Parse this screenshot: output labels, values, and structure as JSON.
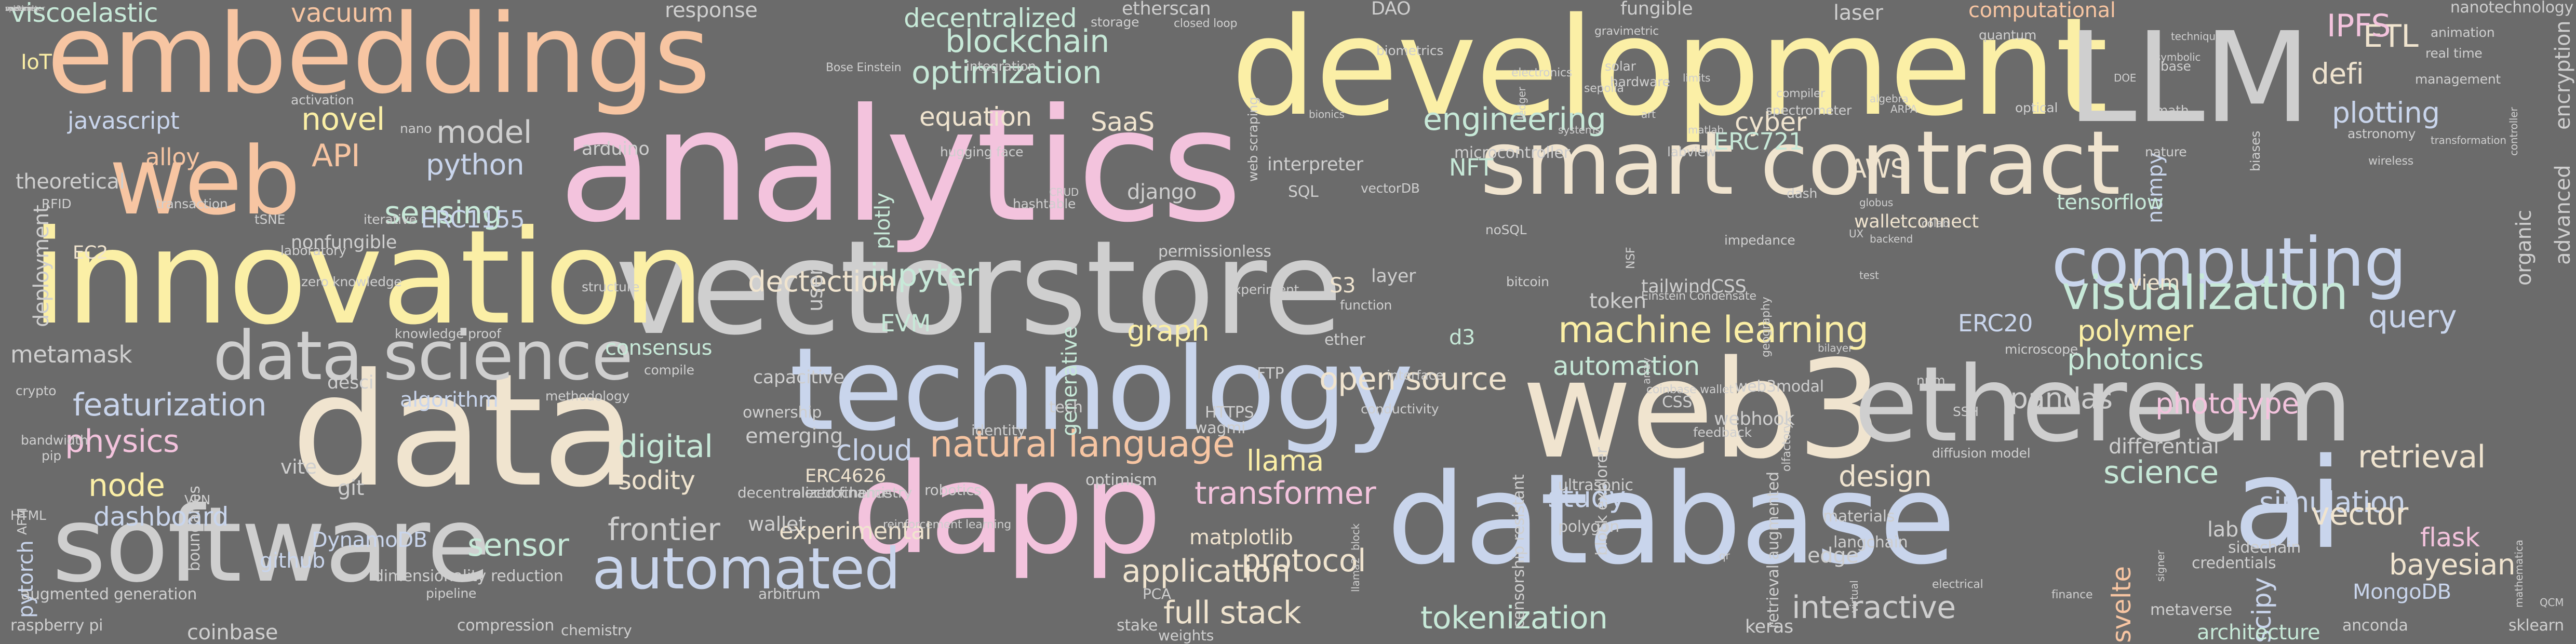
{
  "palette": {
    "background": "#6b6b6b",
    "peach": "#f7c5a2",
    "pink": "#f3c3dd",
    "yellow": "#fbefa6",
    "blue": "#c9d5ec",
    "mint": "#c7e9d8",
    "cream": "#f0e4cf",
    "gray": "#cfcfcf"
  },
  "words": [
    {
      "text": "analytics",
      "color": "#f3c3dd"
    },
    {
      "text": "vectorstore",
      "color": "#cfcfcf"
    },
    {
      "text": "development",
      "color": "#fbefa6"
    },
    {
      "text": "innovation",
      "color": "#fbefa6"
    },
    {
      "text": "embeddings",
      "color": "#f7c5a2"
    },
    {
      "text": "technology",
      "color": "#c9d5ec"
    },
    {
      "text": "database",
      "color": "#c9d5ec"
    },
    {
      "text": "web3",
      "color": "#f0e4cf"
    },
    {
      "text": "data",
      "color": "#f0e4cf"
    },
    {
      "text": "software",
      "color": "#cfcfcf"
    },
    {
      "text": "ethereum",
      "color": "#cfcfcf"
    },
    {
      "text": "smart contract",
      "color": "#f0e4cf"
    },
    {
      "text": "LLM",
      "color": "#cfcfcf"
    },
    {
      "text": "dapp",
      "color": "#f3c3dd"
    },
    {
      "text": "ai",
      "color": "#c9d5ec"
    },
    {
      "text": "web",
      "color": "#f7c5a2"
    },
    {
      "text": "data science",
      "color": "#cfcfcf"
    },
    {
      "text": "computing",
      "color": "#c9d5ec"
    },
    {
      "text": "automated",
      "color": "#c9d5ec"
    },
    {
      "text": "visualization",
      "color": "#c7e9d8"
    },
    {
      "text": "machine learning",
      "color": "#fbefa6"
    },
    {
      "text": "natural language",
      "color": "#f7c5a2"
    },
    {
      "text": "blockchain",
      "color": "#c7e9d8"
    },
    {
      "text": "optimization",
      "color": "#c7e9d8"
    },
    {
      "text": "engineering",
      "color": "#c7e9d8"
    },
    {
      "text": "open source",
      "color": "#f0e4cf"
    },
    {
      "text": "application",
      "color": "#f0e4cf"
    },
    {
      "text": "interactive",
      "color": "#cfcfcf"
    },
    {
      "text": "tokenization",
      "color": "#c7e9d8"
    },
    {
      "text": "frontier",
      "color": "#cfcfcf"
    },
    {
      "text": "transformer",
      "color": "#f3c3dd"
    },
    {
      "text": "featurization",
      "color": "#c9d5ec"
    },
    {
      "text": "physics",
      "color": "#f3c3dd"
    },
    {
      "text": "metamask",
      "color": "#cfcfcf"
    },
    {
      "text": "jupyter",
      "color": "#c7e9d8"
    },
    {
      "text": "novel",
      "color": "#fbefa6"
    },
    {
      "text": "API",
      "color": "#f7c5a2"
    },
    {
      "text": "model",
      "color": "#cfcfcf"
    },
    {
      "text": "python",
      "color": "#c9d5ec"
    },
    {
      "text": "sensing",
      "color": "#c7e9d8"
    },
    {
      "text": "automation",
      "color": "#c7e9d8"
    },
    {
      "text": "science",
      "color": "#c7e9d8"
    },
    {
      "text": "retrieval",
      "color": "#f0e4cf"
    },
    {
      "text": "simulation",
      "color": "#c9d5ec"
    },
    {
      "text": "bayesian",
      "color": "#f0e4cf"
    },
    {
      "text": "vector",
      "color": "#f0e4cf"
    },
    {
      "text": "query",
      "color": "#c9d5ec"
    },
    {
      "text": "polymer",
      "color": "#fbefa6"
    },
    {
      "text": "photonics",
      "color": "#c7e9d8"
    },
    {
      "text": "pandas",
      "color": "#cfcfcf"
    },
    {
      "text": "phototype",
      "color": "#f3c3dd"
    },
    {
      "text": "plotting",
      "color": "#c9d5ec"
    },
    {
      "text": "defi",
      "color": "#f0e4cf"
    },
    {
      "text": "ETL",
      "color": "#f0e4cf"
    },
    {
      "text": "IPFS",
      "color": "#f3c3dd"
    },
    {
      "text": "design",
      "color": "#f0e4cf"
    },
    {
      "text": "study",
      "color": "#c9d5ec"
    },
    {
      "text": "llama",
      "color": "#fbefa6"
    },
    {
      "text": "protocol",
      "color": "#f0e4cf"
    },
    {
      "text": "full stack",
      "color": "#f0e4cf"
    },
    {
      "text": "experimental",
      "color": "#f0e4cf"
    },
    {
      "text": "sodity",
      "color": "#f0e4cf"
    },
    {
      "text": "cloud",
      "color": "#c9d5ec"
    },
    {
      "text": "digital",
      "color": "#c7e9d8"
    },
    {
      "text": "node",
      "color": "#fbefa6"
    },
    {
      "text": "dashboard",
      "color": "#c9d5ec"
    },
    {
      "text": "sensor",
      "color": "#c7e9d8"
    },
    {
      "text": "graph",
      "color": "#fbefa6"
    },
    {
      "text": "dectection",
      "color": "#f0e4cf"
    },
    {
      "text": "EVM",
      "color": "#c7e9d8"
    },
    {
      "text": "equation",
      "color": "#f0e4cf"
    },
    {
      "text": "SaaS",
      "color": "#f0e4cf"
    },
    {
      "text": "cyber",
      "color": "#f0e4cf"
    },
    {
      "text": "NFT",
      "color": "#c7e9d8"
    },
    {
      "text": "AWS",
      "color": "#f0e4cf"
    },
    {
      "text": "ERC721",
      "color": "#c7e9d8"
    },
    {
      "text": "ERC20",
      "color": "#c9d5ec"
    },
    {
      "text": "ERC1155",
      "color": "#c9d5ec"
    },
    {
      "text": "javascript",
      "color": "#c9d5ec"
    },
    {
      "text": "alloy",
      "color": "#f7c5a2"
    },
    {
      "text": "IoT",
      "color": "#fbefa6"
    },
    {
      "text": "viscoelastic",
      "color": "#c7e9d8"
    },
    {
      "text": "vacuum",
      "color": "#f7c5a2"
    },
    {
      "text": "decentralized",
      "color": "#c7e9d8"
    },
    {
      "text": "coinbase",
      "color": "#cfcfcf"
    },
    {
      "text": "scipy",
      "color": "#c9d5ec"
    },
    {
      "text": "svelte",
      "color": "#f7c5a2"
    },
    {
      "text": "flask",
      "color": "#f3c3dd"
    },
    {
      "text": "MongoDB",
      "color": "#c9d5ec"
    },
    {
      "text": "edge",
      "color": "#cfcfcf"
    },
    {
      "text": "emerging",
      "color": "#cfcfcf"
    },
    {
      "text": "matplotlib",
      "color": "#f0e4cf"
    },
    {
      "text": "DynamoDB",
      "color": "#c9d5ec"
    },
    {
      "text": "github",
      "color": "#c9d5ec"
    },
    {
      "text": "git",
      "color": "#cfcfcf"
    },
    {
      "text": "algorithm",
      "color": "#c9d5ec"
    },
    {
      "text": "consensus",
      "color": "#c7e9d8"
    },
    {
      "text": "d3",
      "color": "#c7e9d8"
    },
    {
      "text": "S3",
      "color": "#f0e4cf"
    },
    {
      "text": "viem",
      "color": "#f0e4cf"
    },
    {
      "text": "numpy",
      "color": "#c9d5ec"
    },
    {
      "text": "tensorflow",
      "color": "#c7e9d8"
    },
    {
      "text": "plotly",
      "color": "#c7e9d8"
    },
    {
      "text": "generative",
      "color": "#c7e9d8"
    },
    {
      "text": "django",
      "color": "#cfcfcf"
    },
    {
      "text": "user",
      "color": "#cfcfcf"
    },
    {
      "text": "token",
      "color": "#cfcfcf"
    },
    {
      "text": "organic",
      "color": "#cfcfcf"
    },
    {
      "text": "advanced",
      "color": "#cfcfcf"
    },
    {
      "text": "deployment",
      "color": "#cfcfcf"
    },
    {
      "text": "pytorch",
      "color": "#c9d5ec"
    },
    {
      "text": "differential",
      "color": "#cfcfcf"
    },
    {
      "text": "lab",
      "color": "#cfcfcf"
    },
    {
      "text": "stake",
      "color": "#cfcfcf"
    },
    {
      "text": "keras",
      "color": "#cfcfcf"
    },
    {
      "text": "architecture",
      "color": "#c7e9d8"
    },
    {
      "text": "vite",
      "color": "#cfcfcf"
    },
    {
      "text": "wallet",
      "color": "#cfcfcf"
    },
    {
      "text": "capacitive",
      "color": "#cfcfcf"
    },
    {
      "text": "ERC4626",
      "color": "#f0e4cf"
    },
    {
      "text": "web3modal",
      "color": "#cfcfcf"
    },
    {
      "text": "ownership",
      "color": "#cfcfcf"
    },
    {
      "text": "encryption",
      "color": "#cfcfcf"
    },
    {
      "text": "nanotechnology",
      "color": "#cfcfcf"
    },
    {
      "text": "fungible",
      "color": "#cfcfcf"
    },
    {
      "text": "computational",
      "color": "#f7c5a2"
    },
    {
      "text": "response",
      "color": "#cfcfcf"
    },
    {
      "text": "etherscan",
      "color": "#cfcfcf"
    },
    {
      "text": "DAO",
      "color": "#cfcfcf"
    },
    {
      "text": "laser",
      "color": "#cfcfcf"
    },
    {
      "text": "theoretical",
      "color": "#cfcfcf"
    },
    {
      "text": "EC2",
      "color": "#f0e4cf"
    },
    {
      "text": "nonfungible",
      "color": "#cfcfcf"
    },
    {
      "text": "desci",
      "color": "#cfcfcf"
    },
    {
      "text": "arduino",
      "color": "#cfcfcf"
    },
    {
      "text": "interpreter",
      "color": "#cfcfcf"
    },
    {
      "text": "layer",
      "color": "#cfcfcf"
    },
    {
      "text": "tailwindCSS",
      "color": "#cfcfcf"
    },
    {
      "text": "microcontroller",
      "color": "#cfcfcf"
    },
    {
      "text": "permissionless",
      "color": "#cfcfcf"
    },
    {
      "text": "walletconnect",
      "color": "#f0e4cf"
    },
    {
      "text": "webhook",
      "color": "#cfcfcf"
    },
    {
      "text": "SQL",
      "color": "#cfcfcf"
    },
    {
      "text": "ether",
      "color": "#cfcfcf"
    },
    {
      "text": "polygon",
      "color": "#cfcfcf"
    },
    {
      "text": "ultrasonic",
      "color": "#cfcfcf"
    },
    {
      "text": "materials",
      "color": "#cfcfcf"
    },
    {
      "text": "langchain",
      "color": "#cfcfcf"
    },
    {
      "text": "sidechain",
      "color": "#cfcfcf"
    },
    {
      "text": "credentials",
      "color": "#cfcfcf"
    },
    {
      "text": "metaverse",
      "color": "#cfcfcf"
    },
    {
      "text": "anconda",
      "color": "#cfcfcf"
    },
    {
      "text": "sklearn",
      "color": "#cfcfcf"
    },
    {
      "text": "retrieval augmented",
      "color": "#cfcfcf"
    },
    {
      "text": "censorship resistant",
      "color": "#cfcfcf"
    },
    {
      "text": "block explorer",
      "color": "#cfcfcf"
    },
    {
      "text": "CSS",
      "color": "#cfcfcf"
    },
    {
      "text": "FTP",
      "color": "#cfcfcf"
    },
    {
      "text": "HTTPS",
      "color": "#cfcfcf"
    },
    {
      "text": "wagmi",
      "color": "#cfcfcf"
    },
    {
      "text": "tech",
      "color": "#cfcfcf"
    },
    {
      "text": "optimism",
      "color": "#cfcfcf"
    },
    {
      "text": "identity",
      "color": "#cfcfcf"
    },
    {
      "text": "robotics",
      "color": "#cfcfcf"
    },
    {
      "text": "electrochemistry",
      "color": "#cfcfcf"
    },
    {
      "text": "decentralized finance",
      "color": "#cfcfcf"
    },
    {
      "text": "augmented generation",
      "color": "#cfcfcf"
    },
    {
      "text": "dimensionality reduction",
      "color": "#cfcfcf"
    },
    {
      "text": "raspberry pi",
      "color": "#cfcfcf"
    },
    {
      "text": "compression",
      "color": "#cfcfcf"
    },
    {
      "text": "weights",
      "color": "#cfcfcf"
    },
    {
      "text": "arbitrum",
      "color": "#cfcfcf"
    },
    {
      "text": "PCA",
      "color": "#cfcfcf"
    },
    {
      "text": "chemistry",
      "color": "#cfcfcf"
    },
    {
      "text": "pipeline",
      "color": "#cfcfcf"
    },
    {
      "text": "boundaries",
      "color": "#cfcfcf"
    },
    {
      "text": "VPN",
      "color": "#cfcfcf"
    },
    {
      "text": "pip",
      "color": "#cfcfcf"
    },
    {
      "text": "bandwidth",
      "color": "#cfcfcf"
    },
    {
      "text": "knowledge proof",
      "color": "#cfcfcf"
    },
    {
      "text": "zero knowledge",
      "color": "#cfcfcf"
    },
    {
      "text": "laboratory",
      "color": "#cfcfcf"
    },
    {
      "text": "iterative",
      "color": "#cfcfcf"
    },
    {
      "text": "tSNE",
      "color": "#cfcfcf"
    },
    {
      "text": "crypto",
      "color": "#cfcfcf"
    },
    {
      "text": "RFID",
      "color": "#cfcfcf"
    },
    {
      "text": "transaction",
      "color": "#cfcfcf"
    },
    {
      "text": "activation",
      "color": "#cfcfcf"
    },
    {
      "text": "nano",
      "color": "#cfcfcf"
    },
    {
      "text": "hashtable",
      "color": "#cfcfcf"
    },
    {
      "text": "structure",
      "color": "#cfcfcf"
    },
    {
      "text": "compile",
      "color": "#cfcfcf"
    },
    {
      "text": "methodology",
      "color": "#cfcfcf"
    },
    {
      "text": "conductivity",
      "color": "#cfcfcf"
    },
    {
      "text": "interface",
      "color": "#cfcfcf"
    },
    {
      "text": "experiment",
      "color": "#cfcfcf"
    },
    {
      "text": "function",
      "color": "#cfcfcf"
    },
    {
      "text": "vectorDB",
      "color": "#cfcfcf"
    },
    {
      "text": "noSQL",
      "color": "#cfcfcf"
    },
    {
      "text": "bitcoin",
      "color": "#cfcfcf"
    },
    {
      "text": "impedance",
      "color": "#cfcfcf"
    },
    {
      "text": "microscope",
      "color": "#cfcfcf"
    },
    {
      "text": "SSH",
      "color": "#cfcfcf"
    },
    {
      "text": "npm",
      "color": "#cfcfcf"
    },
    {
      "text": "diffusion model",
      "color": "#cfcfcf"
    },
    {
      "text": "feedback",
      "color": "#cfcfcf"
    },
    {
      "text": "optical",
      "color": "#cfcfcf"
    },
    {
      "text": "dash",
      "color": "#cfcfcf"
    },
    {
      "text": "labview",
      "color": "#cfcfcf"
    },
    {
      "text": "quantum",
      "color": "#cfcfcf"
    },
    {
      "text": "real time",
      "color": "#cfcfcf"
    },
    {
      "text": "math",
      "color": "#cfcfcf"
    },
    {
      "text": "biases",
      "color": "#cfcfcf"
    },
    {
      "text": "base",
      "color": "#cfcfcf"
    },
    {
      "text": "nature",
      "color": "#cfcfcf"
    },
    {
      "text": "management",
      "color": "#cfcfcf"
    },
    {
      "text": "animation",
      "color": "#cfcfcf"
    },
    {
      "text": "astronomy",
      "color": "#cfcfcf"
    },
    {
      "text": "storage",
      "color": "#cfcfcf"
    },
    {
      "text": "hugging face",
      "color": "#cfcfcf"
    },
    {
      "text": "integration",
      "color": "#cfcfcf"
    },
    {
      "text": "web scraping",
      "color": "#cfcfcf"
    },
    {
      "text": "biometrics",
      "color": "#cfcfcf"
    },
    {
      "text": "hardware",
      "color": "#cfcfcf"
    },
    {
      "text": "solar",
      "color": "#cfcfcf"
    },
    {
      "text": "spectrometer",
      "color": "#cfcfcf"
    },
    {
      "text": "closed loop",
      "color": "#cfcfcf"
    },
    {
      "text": "compiler",
      "color": "#cfcfcf"
    },
    {
      "text": "Bose Einstein",
      "color": "#cfcfcf"
    },
    {
      "text": "reinforcement learning",
      "color": "#cfcfcf"
    },
    {
      "text": "HTML",
      "color": "#cfcfcf"
    },
    {
      "text": "AFM",
      "color": "#cfcfcf"
    },
    {
      "text": "NSF",
      "color": "#cfcfcf"
    },
    {
      "text": "electronics",
      "color": "#cfcfcf"
    },
    {
      "text": "gravimetric",
      "color": "#cfcfcf"
    },
    {
      "text": "geography",
      "color": "#cfcfcf"
    },
    {
      "text": "olfactory",
      "color": "#cfcfcf"
    },
    {
      "text": "coinbase wallet",
      "color": "#cfcfcf"
    },
    {
      "text": "finance",
      "color": "#cfcfcf"
    },
    {
      "text": "electrical",
      "color": "#cfcfcf"
    },
    {
      "text": "sepolia",
      "color": "#cfcfcf"
    },
    {
      "text": "Einstein Condensate",
      "color": "#cfcfcf"
    },
    {
      "text": "wireless",
      "color": "#cfcfcf"
    },
    {
      "text": "controller",
      "color": "#cfcfcf"
    },
    {
      "text": "QCM",
      "color": "#cfcfcf"
    },
    {
      "text": "mathematica",
      "color": "#cfcfcf"
    },
    {
      "text": "signer",
      "color": "#cfcfcf"
    },
    {
      "text": "algebra",
      "color": "#cfcfcf"
    },
    {
      "text": "symbolic",
      "color": "#cfcfcf"
    },
    {
      "text": "systems",
      "color": "#cfcfcf"
    },
    {
      "text": "ARPA",
      "color": "#cfcfcf"
    },
    {
      "text": "limits",
      "color": "#cfcfcf"
    },
    {
      "text": "technique",
      "color": "#cfcfcf"
    },
    {
      "text": "transformation",
      "color": "#cfcfcf"
    },
    {
      "text": "globus",
      "color": "#cfcfcf"
    },
    {
      "text": "colab",
      "color": "#cfcfcf"
    },
    {
      "text": "matlab",
      "color": "#cfcfcf"
    },
    {
      "text": "UX",
      "color": "#cfcfcf"
    },
    {
      "text": "virtual",
      "color": "#cfcfcf"
    },
    {
      "text": "ledger",
      "color": "#cfcfcf"
    },
    {
      "text": "backend",
      "color": "#cfcfcf"
    },
    {
      "text": "art",
      "color": "#cfcfcf"
    },
    {
      "text": "bionics",
      "color": "#cfcfcf"
    },
    {
      "text": "DOE",
      "color": "#cfcfcf"
    },
    {
      "text": "CRUD",
      "color": "#cfcfcf"
    },
    {
      "text": "llama2",
      "color": "#cfcfcf"
    },
    {
      "text": "array",
      "color": "#cfcfcf"
    },
    {
      "text": "bilayer",
      "color": "#cfcfcf"
    },
    {
      "text": "test",
      "color": "#cfcfcf"
    },
    {
      "text": "qr",
      "color": "#cfcfcf"
    },
    {
      "text": "block",
      "color": "#cfcfcf"
    },
    {
      "text": "vue",
      "color": "#cfcfcf"
    },
    {
      "text": "spectral",
      "color": "#cfcfcf"
    },
    {
      "text": "soldering",
      "color": "#cfcfcf"
    },
    {
      "text": "multimeter",
      "color": "#cfcfcf"
    }
  ]
}
